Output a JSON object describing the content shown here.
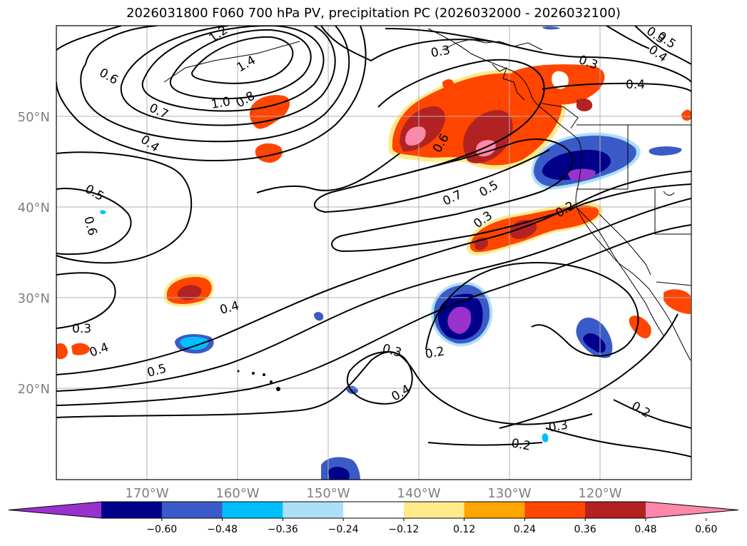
{
  "title": "2026031800 F060 700 hPa PV, precipitation PC (2026032000 - 2026032100)",
  "lat_labels": [
    "50°N",
    "40°N",
    "30°N",
    "20°N"
  ],
  "lon_labels": [
    "170°W",
    "160°W",
    "150°W",
    "140°W",
    "130°W",
    "120°W"
  ],
  "contour_labels": [
    "1.2",
    "1.4",
    "0.6",
    "0.7",
    "1.0",
    "0.8",
    "0.4",
    "0.5",
    "0.6",
    "0.3",
    "0.4",
    "0.5",
    "0.3",
    "0.6",
    "0.7",
    "0.5",
    "0.3",
    "0.2",
    "0.4",
    "0.3",
    "0.4",
    "0.5",
    "0.3",
    "0.2",
    "0.4",
    "0.3",
    "0.2",
    "0.2",
    "0.3",
    "0.4"
  ],
  "colorbar": {
    "tick_labels": [
      "−0.60",
      "−0.48",
      "−0.36",
      "−0.24",
      "−0.12",
      "0.12",
      "0.24",
      "0.36",
      "0.48",
      "0.60"
    ],
    "colors": [
      "#9932CC",
      "#00008B",
      "#3A5BC7",
      "#00BFFF",
      "#ADE0F7",
      "#FFFFFF",
      "#FFEB8C",
      "#FFA500",
      "#FF4500",
      "#B22222",
      "#FF88AA"
    ]
  }
}
